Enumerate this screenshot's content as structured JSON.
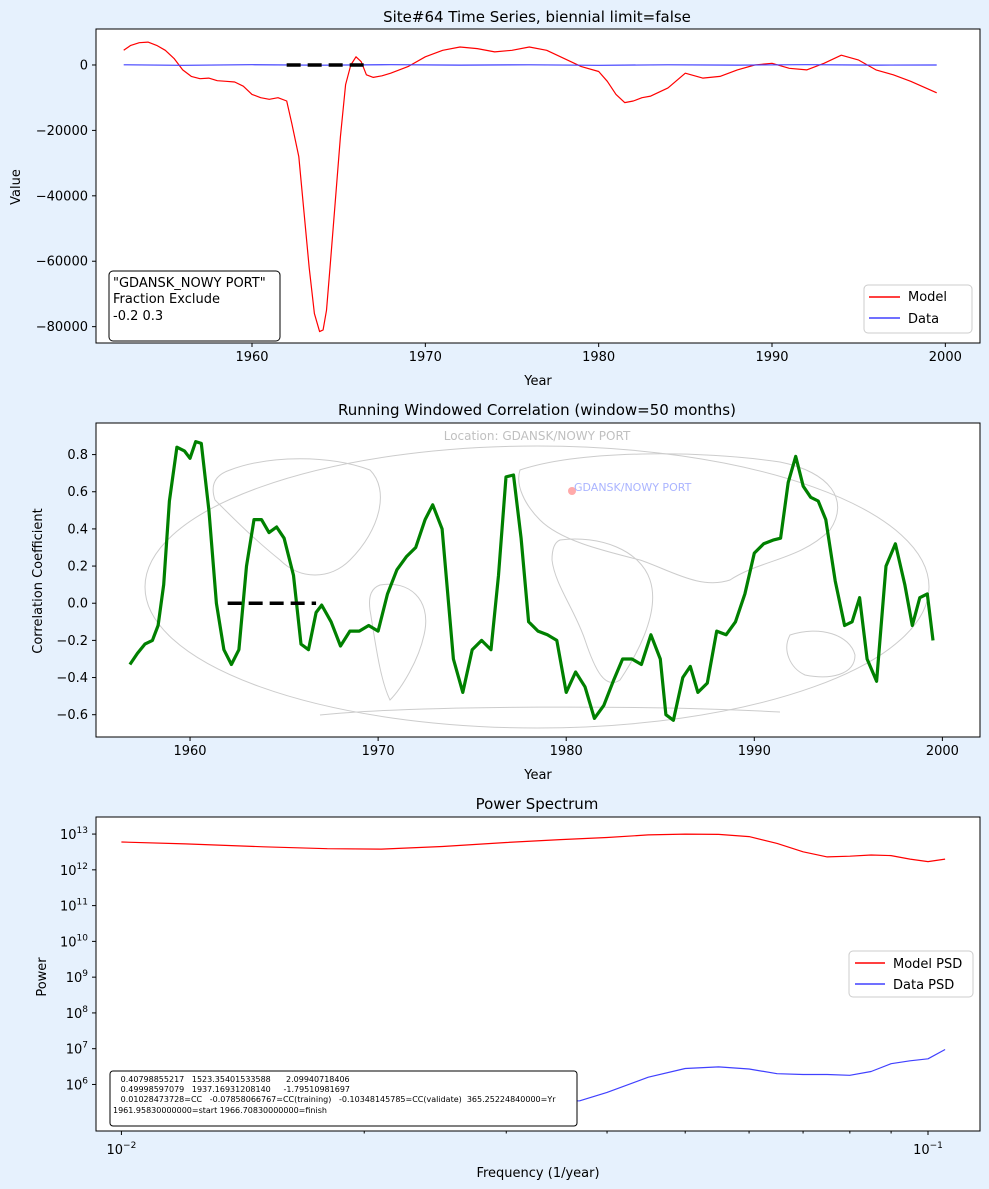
{
  "chart_data": [
    {
      "type": "line",
      "title": "Site#64 Time Series, biennial limit=false",
      "xlabel": "Year",
      "ylabel": "Value",
      "xlim": [
        1951,
        2002
      ],
      "ylim": [
        -85000,
        11000
      ],
      "xticks": [
        1960,
        1970,
        1980,
        1990,
        2000
      ],
      "yticks": [
        0,
        -20000,
        -40000,
        -60000,
        -80000
      ],
      "ytick_labels": [
        "0",
        "−20000",
        "−40000",
        "−60000",
        "−80000"
      ],
      "legend": {
        "position": "lower-right",
        "entries": [
          "Model",
          "Data"
        ]
      },
      "annotation": [
        "\"GDANSK_NOWY PORT\"",
        "Fraction Exclude",
        "-0.2 0.3"
      ],
      "exclusion_segment": {
        "x": [
          1962.0,
          1966.7
        ],
        "y": 0,
        "style": "black dashed"
      },
      "series": [
        {
          "name": "Model",
          "color": "#ff0000",
          "x": [
            1952.6,
            1953.0,
            1953.5,
            1954.0,
            1954.5,
            1955.0,
            1955.5,
            1956.0,
            1956.5,
            1957.0,
            1957.5,
            1958.0,
            1958.5,
            1959.0,
            1959.5,
            1960.0,
            1960.5,
            1961.0,
            1961.5,
            1962.0,
            1962.3,
            1962.7,
            1963.0,
            1963.3,
            1963.6,
            1963.9,
            1964.1,
            1964.3,
            1964.5,
            1964.8,
            1965.1,
            1965.4,
            1965.7,
            1966.0,
            1966.3,
            1966.6,
            1967.0,
            1967.5,
            1968.0,
            1969.0,
            1970.0,
            1971.0,
            1972.0,
            1973.0,
            1974.0,
            1975.0,
            1976.0,
            1977.0,
            1978.0,
            1979.0,
            1980.0,
            1980.5,
            1981.0,
            1981.5,
            1982.0,
            1982.5,
            1983.0,
            1984.0,
            1985.0,
            1986.0,
            1987.0,
            1988.0,
            1989.0,
            1990.0,
            1991.0,
            1992.0,
            1993.0,
            1994.0,
            1995.0,
            1996.0,
            1997.0,
            1998.0,
            1999.5
          ],
          "y": [
            4500,
            6000,
            6800,
            7000,
            6000,
            4500,
            2000,
            -1500,
            -3500,
            -4200,
            -4000,
            -4800,
            -5000,
            -5200,
            -6500,
            -9000,
            -10000,
            -10500,
            -10000,
            -11000,
            -18000,
            -28000,
            -45000,
            -62000,
            -76000,
            -81500,
            -81000,
            -75000,
            -62000,
            -42000,
            -22000,
            -6000,
            0,
            2500,
            1000,
            -3000,
            -3800,
            -3300,
            -2500,
            -500,
            2500,
            4500,
            5500,
            5000,
            4000,
            4500,
            5500,
            4500,
            2000,
            -500,
            -2000,
            -5000,
            -9000,
            -11500,
            -11000,
            -10000,
            -9500,
            -7000,
            -2500,
            -4000,
            -3500,
            -1500,
            0,
            500,
            -1000,
            -1500,
            500,
            3000,
            1500,
            -1500,
            -3000,
            -5000,
            -8500
          ]
        },
        {
          "name": "Data",
          "color": "#4040ff",
          "x": [
            1952.6,
            1956,
            1960,
            1964,
            1968,
            1972,
            1976,
            1980,
            1984,
            1988,
            1992,
            1996,
            1999.5
          ],
          "y": [
            50,
            -100,
            80,
            -60,
            90,
            -40,
            70,
            -90,
            60,
            -50,
            80,
            -30,
            0
          ]
        }
      ]
    },
    {
      "type": "line",
      "title": "Running Windowed Correlation (window=50 months)",
      "xlabel": "Year",
      "ylabel": "Correlation Coefficient",
      "xlim": [
        1955,
        2002
      ],
      "ylim": [
        -0.72,
        0.97
      ],
      "xticks": [
        1960,
        1970,
        1980,
        1990,
        2000
      ],
      "yticks": [
        0.8,
        0.6,
        0.4,
        0.2,
        0.0,
        -0.2,
        -0.4,
        -0.6
      ],
      "ytick_labels": [
        "0.8",
        "0.6",
        "0.4",
        "0.2",
        "0.0",
        "−0.2",
        "−0.4",
        "−0.6"
      ],
      "background_map": {
        "label": "Location: GDANSK/NOWY PORT",
        "marker_label": "GDANSK/NOWY PORT",
        "marker_color": "#ffaaaa"
      },
      "exclusion_segment": {
        "x": [
          1962.0,
          1966.7
        ],
        "y": 0,
        "style": "black dashed"
      },
      "series": [
        {
          "name": "Correlation",
          "color": "#008000",
          "x": [
            1956.8,
            1957.2,
            1957.6,
            1958.0,
            1958.3,
            1958.6,
            1958.9,
            1959.3,
            1959.7,
            1960.0,
            1960.3,
            1960.6,
            1961.0,
            1961.4,
            1961.8,
            1962.2,
            1962.6,
            1963.0,
            1963.4,
            1963.8,
            1964.2,
            1964.6,
            1965.0,
            1965.5,
            1965.9,
            1966.3,
            1966.7,
            1967.0,
            1967.5,
            1968.0,
            1968.5,
            1969.0,
            1969.5,
            1970.0,
            1970.5,
            1971.0,
            1971.5,
            1972.0,
            1972.5,
            1972.9,
            1973.4,
            1974.0,
            1974.5,
            1975.0,
            1975.5,
            1976.0,
            1976.4,
            1976.8,
            1977.2,
            1977.6,
            1978.0,
            1978.5,
            1979.0,
            1979.5,
            1980.0,
            1980.5,
            1981.0,
            1981.5,
            1982.0,
            1982.5,
            1983.0,
            1983.5,
            1984.0,
            1984.5,
            1985.0,
            1985.3,
            1985.7,
            1986.2,
            1986.6,
            1987.0,
            1987.5,
            1988.0,
            1988.5,
            1989.0,
            1989.5,
            1990.0,
            1990.5,
            1991.0,
            1991.4,
            1991.8,
            1992.2,
            1992.6,
            1993.0,
            1993.4,
            1993.8,
            1994.3,
            1994.8,
            1995.2,
            1995.6,
            1996.0,
            1996.5,
            1997.0,
            1997.5,
            1998.0,
            1998.4,
            1998.8,
            1999.2,
            1999.5
          ],
          "y": [
            -0.33,
            -0.27,
            -0.22,
            -0.2,
            -0.12,
            0.1,
            0.55,
            0.84,
            0.82,
            0.78,
            0.87,
            0.86,
            0.5,
            0.0,
            -0.25,
            -0.33,
            -0.25,
            0.2,
            0.45,
            0.45,
            0.38,
            0.41,
            0.35,
            0.15,
            -0.22,
            -0.25,
            -0.05,
            -0.01,
            -0.1,
            -0.23,
            -0.15,
            -0.15,
            -0.12,
            -0.15,
            0.05,
            0.18,
            0.25,
            0.3,
            0.45,
            0.53,
            0.4,
            -0.3,
            -0.48,
            -0.25,
            -0.2,
            -0.25,
            0.15,
            0.68,
            0.69,
            0.35,
            -0.1,
            -0.15,
            -0.17,
            -0.2,
            -0.48,
            -0.37,
            -0.45,
            -0.62,
            -0.55,
            -0.42,
            -0.3,
            -0.3,
            -0.33,
            -0.17,
            -0.3,
            -0.6,
            -0.63,
            -0.4,
            -0.34,
            -0.48,
            -0.43,
            -0.15,
            -0.17,
            -0.1,
            0.05,
            0.27,
            0.32,
            0.34,
            0.35,
            0.65,
            0.79,
            0.63,
            0.57,
            0.55,
            0.45,
            0.12,
            -0.12,
            -0.1,
            0.03,
            -0.3,
            -0.42,
            0.2,
            0.32,
            0.1,
            -0.12,
            0.03,
            0.05,
            -0.2
          ]
        }
      ]
    },
    {
      "type": "line",
      "title": "Power Spectrum",
      "xlabel": "Frequency (1/year)",
      "ylabel": "Power",
      "xscale": "log",
      "yscale": "log",
      "xlim": [
        0.0093,
        0.116
      ],
      "ylim": [
        50000.0,
        30000000000000.0
      ],
      "xticks": [
        {
          "base": "10",
          "exp": "−2",
          "value": 0.01
        },
        {
          "base": "10",
          "exp": "−1",
          "value": 0.1
        }
      ],
      "yticks": [
        {
          "base": "10",
          "exp": "13",
          "value": 10000000000000.0
        },
        {
          "base": "10",
          "exp": "12",
          "value": 1000000000000.0
        },
        {
          "base": "10",
          "exp": "11",
          "value": 100000000000.0
        },
        {
          "base": "10",
          "exp": "10",
          "value": 10000000000.0
        },
        {
          "base": "10",
          "exp": "9",
          "value": 1000000000.0
        },
        {
          "base": "10",
          "exp": "8",
          "value": 100000000.0
        },
        {
          "base": "10",
          "exp": "7",
          "value": 10000000.0
        },
        {
          "base": "10",
          "exp": "6",
          "value": 1000000.0
        }
      ],
      "legend": {
        "position": "center-right",
        "entries": [
          "Model PSD",
          "Data PSD"
        ]
      },
      "annotation": [
        "   0.40798855217   1523.35401533588      2.09940718406",
        "   0.49998597079   1937.16931208140     -1.79510981697",
        "   0.01028473728=CC   -0.07858066767=CC(training)   -0.10348145785=CC(validate)  365.25224840000=Yr",
        "1961.95830000000=start 1966.70830000000=finish"
      ],
      "series": [
        {
          "name": "Model PSD",
          "color": "#ff0000",
          "x": [
            0.01,
            0.012,
            0.015,
            0.018,
            0.021,
            0.025,
            0.03,
            0.035,
            0.04,
            0.045,
            0.05,
            0.055,
            0.06,
            0.065,
            0.07,
            0.075,
            0.08,
            0.085,
            0.09,
            0.095,
            0.1,
            0.105
          ],
          "y": [
            6000000000000.0,
            5300000000000.0,
            4400000000000.0,
            3900000000000.0,
            3800000000000.0,
            4500000000000.0,
            5800000000000.0,
            7000000000000.0,
            8000000000000.0,
            9500000000000.0,
            10000000000000.0,
            9800000000000.0,
            8500000000000.0,
            5500000000000.0,
            3200000000000.0,
            2300000000000.0,
            2400000000000.0,
            2600000000000.0,
            2500000000000.0,
            2000000000000.0,
            1700000000000.0,
            2000000000000.0
          ]
        },
        {
          "name": "Data PSD",
          "color": "#4040ff",
          "x": [
            0.024,
            0.028,
            0.032,
            0.035,
            0.037,
            0.04,
            0.045,
            0.05,
            0.055,
            0.06,
            0.065,
            0.07,
            0.075,
            0.08,
            0.085,
            0.09,
            0.095,
            0.1,
            0.105
          ],
          "y": [
            800000.0,
            600000.0,
            450000.0,
            340000.0,
            350000.0,
            600000.0,
            1600000.0,
            2800000.0,
            3100000.0,
            2700000.0,
            2000000.0,
            1900000.0,
            1900000.0,
            1800000.0,
            2300000.0,
            3800000.0,
            4600000.0,
            5200000.0,
            9500000.0
          ]
        }
      ]
    }
  ]
}
